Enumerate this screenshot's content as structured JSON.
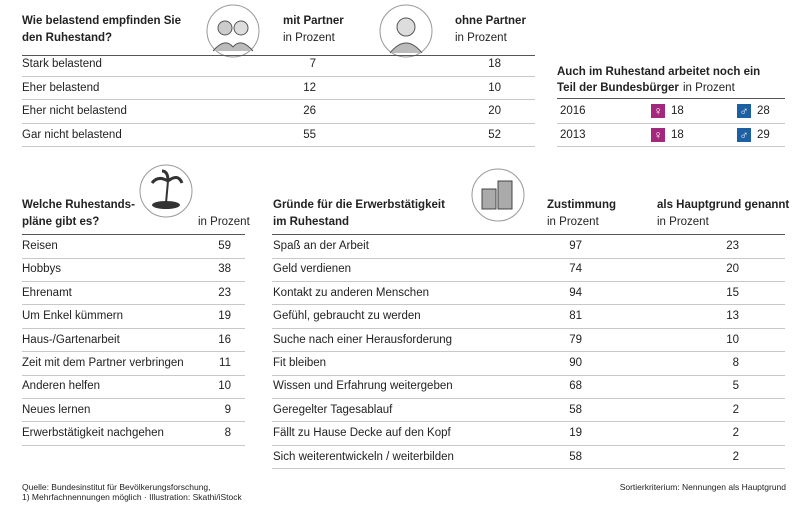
{
  "burden": {
    "question": [
      "Wie belastend empfinden Sie",
      "den Ruhestand?"
    ],
    "columns": [
      {
        "label": "mit Partner",
        "unit": "in Prozent"
      },
      {
        "label": "ohne Partner",
        "unit": "in Prozent"
      }
    ],
    "rows": [
      {
        "label": "Stark belastend",
        "values": [
          7,
          18
        ]
      },
      {
        "label": "Eher belastend",
        "values": [
          12,
          10
        ]
      },
      {
        "label": "Eher nicht belastend",
        "values": [
          26,
          20
        ]
      },
      {
        "label": "Gar nicht belastend",
        "values": [
          55,
          52
        ]
      }
    ]
  },
  "working": {
    "title": [
      "Auch im Ruhestand arbeitet noch ein",
      "Teil der Bundesbürger"
    ],
    "unit": "in Prozent",
    "rows": [
      {
        "year": "2016",
        "values": [
          18,
          28
        ]
      },
      {
        "year": "2013",
        "values": [
          18,
          29
        ]
      }
    ]
  },
  "plans": {
    "question": [
      "Welche Ruhestands-",
      "pläne gibt es?"
    ],
    "unit": "in Prozent",
    "rows": [
      {
        "label": "Reisen",
        "value": 59
      },
      {
        "label": "Hobbys",
        "value": 38
      },
      {
        "label": "Ehrenamt",
        "value": 23
      },
      {
        "label": "Um Enkel kümmern",
        "value": 19
      },
      {
        "label": "Haus-/Gartenarbeit",
        "value": 16
      },
      {
        "label": "Zeit mit dem Partner verbringen",
        "value": 11
      },
      {
        "label": "Anderen helfen",
        "value": 10
      },
      {
        "label": "Neues lernen",
        "value": 9
      },
      {
        "label": "Erwerbstätigkeit nachgehen",
        "value": 8
      }
    ]
  },
  "reasons": {
    "question": [
      "Gründe für die Erwerbstätigkeit",
      "im Ruhestand"
    ],
    "columns": [
      {
        "label": "Zustimmung",
        "unit": "in Prozent"
      },
      {
        "label": "als Hauptgrund genannt",
        "unit": "in Prozent"
      }
    ],
    "rows": [
      {
        "label": "Spaß an der Arbeit",
        "values": [
          97,
          23
        ]
      },
      {
        "label": "Geld verdienen",
        "values": [
          74,
          20
        ]
      },
      {
        "label": "Kontakt zu anderen Menschen",
        "values": [
          94,
          15
        ]
      },
      {
        "label": "Gefühl, gebraucht zu werden",
        "values": [
          81,
          13
        ]
      },
      {
        "label": "Suche nach einer Herausforderung",
        "values": [
          79,
          10
        ]
      },
      {
        "label": "Fit bleiben",
        "values": [
          90,
          8
        ]
      },
      {
        "label": "Wissen und Erfahrung weitergeben",
        "values": [
          68,
          5
        ]
      },
      {
        "label": "Geregelter Tagesablauf",
        "values": [
          58,
          2
        ]
      },
      {
        "label": "Fällt zu Hause Decke auf den Kopf",
        "values": [
          19,
          2
        ]
      },
      {
        "label": "Sich weiterentwickeln / weiterbilden",
        "values": [
          58,
          2
        ]
      }
    ]
  },
  "footer": {
    "source": [
      "Quelle: Bundesinstitut für Bevölkerungsforschung,",
      "1) Mehrfachnennungen möglich · Illustration: Skathi/iStock"
    ],
    "sort": "Sortierkriterium: Nennungen als Hauptgrund"
  }
}
